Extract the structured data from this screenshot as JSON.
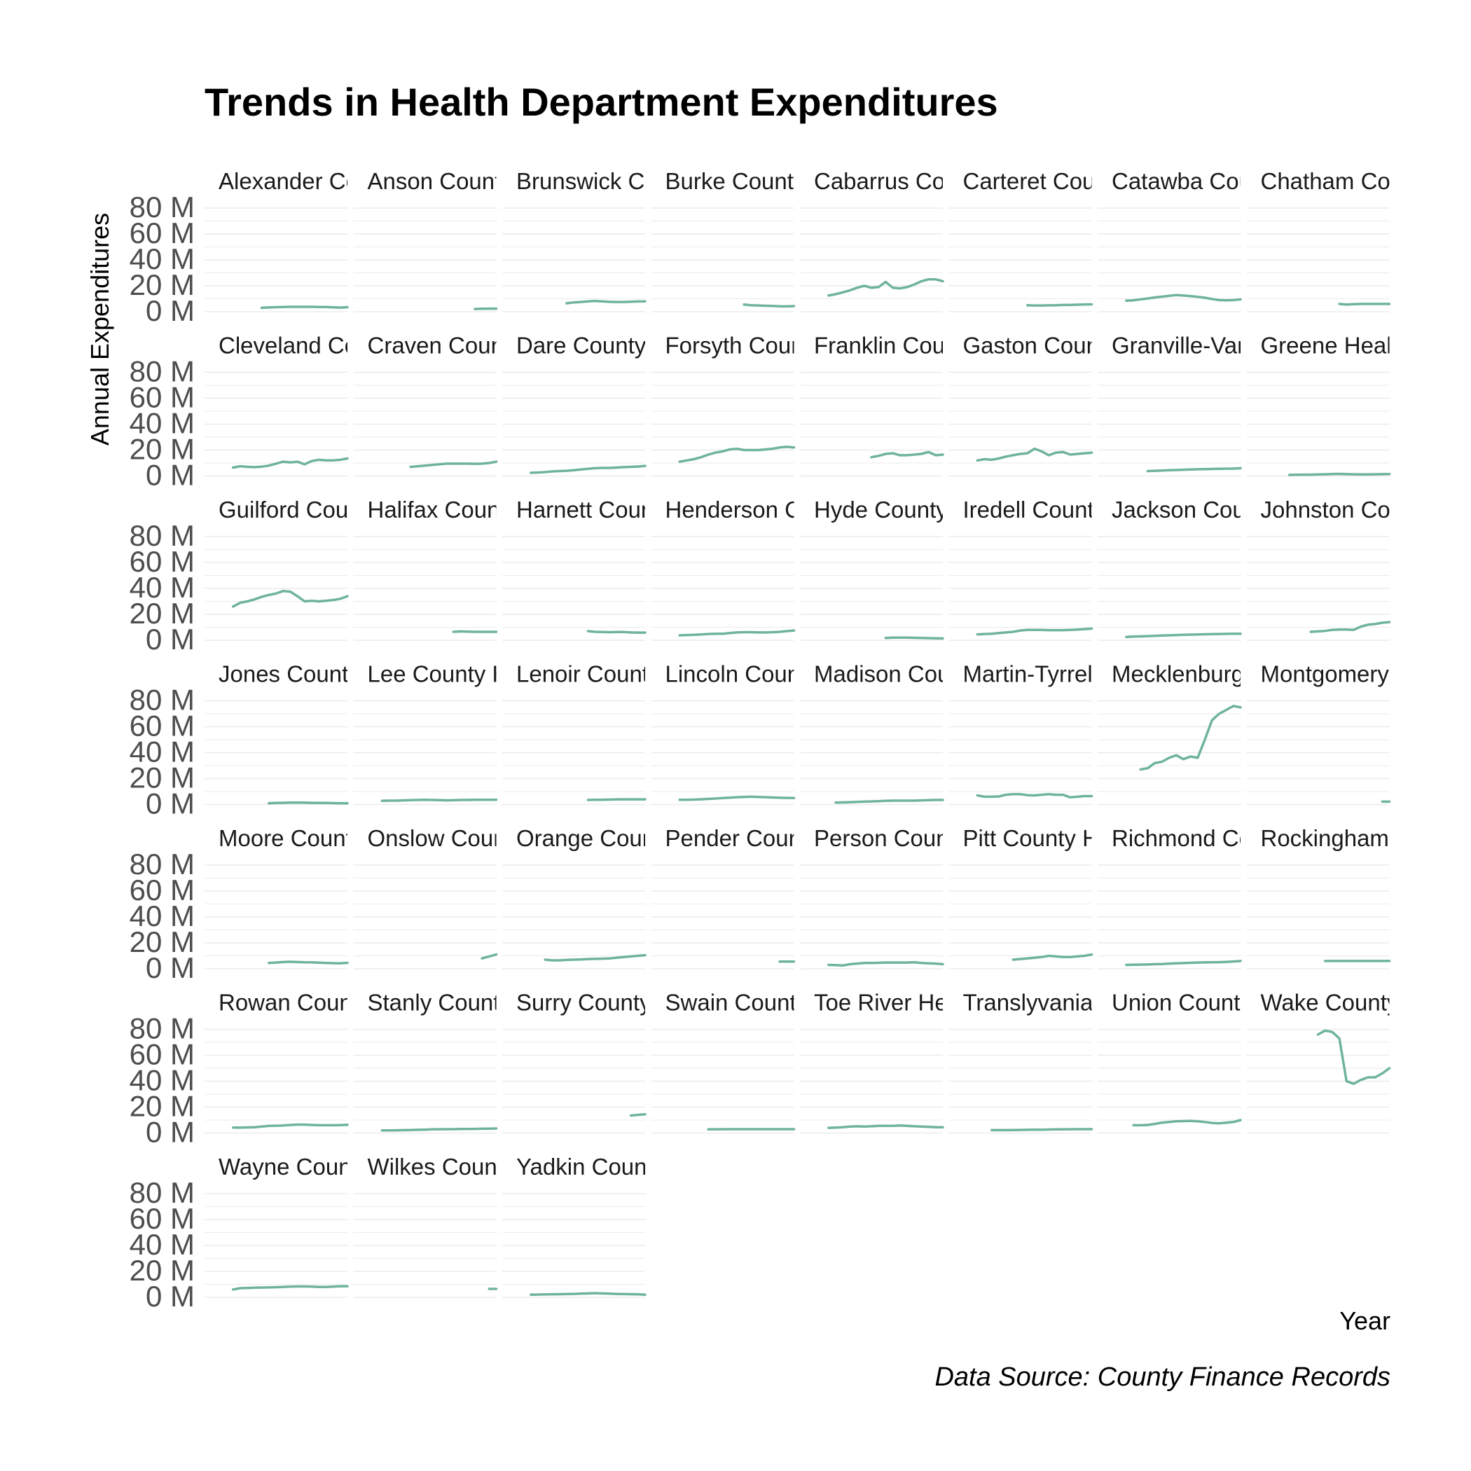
{
  "chart_data": {
    "type": "line",
    "title": "Trends in Health Department Expenditures",
    "xlabel": "Year",
    "ylabel": "Annual Expenditures",
    "caption": "Data Source: County Finance Records",
    "ylim": [
      0,
      80
    ],
    "yticks": [
      0,
      20,
      40,
      60,
      80
    ],
    "ytick_labels": [
      "0 M",
      "20 M",
      "40 M",
      "60 M",
      "80 M"
    ],
    "units": "M",
    "grid": true,
    "legend": "none",
    "line_color": "#6fb39e",
    "panels": [
      {
        "label": "Alexander Co",
        "values": [
          null,
          null,
          null,
          null,
          3.0,
          3.3,
          3.5,
          3.7,
          3.8,
          3.8,
          3.8,
          3.8,
          3.7,
          3.6,
          3.4,
          3.2,
          3.5
        ]
      },
      {
        "label": "Anson Count",
        "values": [
          null,
          null,
          null,
          null,
          null,
          null,
          null,
          null,
          null,
          null,
          null,
          null,
          null,
          2.1,
          2.3,
          2.4,
          2.4
        ]
      },
      {
        "label": "Brunswick Co",
        "values": [
          null,
          null,
          null,
          null,
          null,
          6.5,
          7.2,
          7.5,
          8.0,
          8.3,
          8.0,
          7.6,
          7.5,
          7.5,
          7.7,
          7.9,
          8.0
        ]
      },
      {
        "label": "Burke County",
        "values": [
          null,
          null,
          null,
          null,
          null,
          null,
          null,
          null,
          null,
          5.5,
          5.0,
          4.8,
          4.6,
          4.5,
          4.2,
          4.1,
          4.3
        ]
      },
      {
        "label": "Cabarrus Cou",
        "values": [
          12.5,
          13.5,
          15.0,
          16.5,
          18.5,
          20.0,
          18.5,
          19.0,
          23.0,
          18.5,
          18.0,
          19.0,
          21.0,
          23.5,
          25.0,
          25.0,
          23.5
        ]
      },
      {
        "label": "Carteret Coun",
        "values": [
          null,
          null,
          null,
          null,
          null,
          null,
          null,
          5.0,
          4.8,
          4.8,
          4.9,
          5.0,
          5.2,
          5.3,
          5.4,
          5.6,
          5.7
        ]
      },
      {
        "label": "Catawba Cou",
        "values": [
          8.5,
          8.8,
          9.5,
          10.2,
          11.0,
          11.6,
          12.2,
          12.8,
          12.5,
          12.0,
          11.5,
          10.8,
          9.8,
          9.0,
          8.8,
          9.0,
          9.5
        ]
      },
      {
        "label": "Chatham Cou",
        "values": [
          null,
          null,
          null,
          null,
          null,
          null,
          null,
          null,
          null,
          6.0,
          5.5,
          5.8,
          6.0,
          6.0,
          6.0,
          6.0,
          6.0
        ]
      },
      {
        "label": "Cleveland Co",
        "values": [
          6.5,
          7.5,
          7.0,
          6.8,
          7.2,
          8.0,
          9.5,
          11.0,
          10.5,
          11.0,
          9.0,
          11.5,
          12.5,
          12.0,
          12.0,
          12.5,
          13.5
        ]
      },
      {
        "label": "Craven Coun",
        "values": [
          null,
          null,
          null,
          null,
          7.0,
          7.5,
          8.0,
          8.5,
          9.0,
          9.5,
          9.5,
          9.5,
          9.5,
          9.4,
          9.5,
          10.0,
          11.0
        ]
      },
      {
        "label": "Dare County",
        "values": [
          2.5,
          2.7,
          3.0,
          3.5,
          3.8,
          4.0,
          4.5,
          5.0,
          5.5,
          6.0,
          6.2,
          6.2,
          6.5,
          6.8,
          7.0,
          7.3,
          7.8
        ]
      },
      {
        "label": "Forsyth Cour",
        "values": [
          11.0,
          12.0,
          13.0,
          14.5,
          16.5,
          18.0,
          19.0,
          20.5,
          21.0,
          20.0,
          20.0,
          20.0,
          20.5,
          21.0,
          22.0,
          22.5,
          22.0
        ]
      },
      {
        "label": "Franklin Cour",
        "values": [
          null,
          null,
          null,
          null,
          null,
          null,
          14.5,
          15.5,
          17.0,
          17.5,
          16.0,
          16.0,
          16.5,
          17.0,
          18.5,
          16.0,
          16.5
        ]
      },
      {
        "label": "Gaston Coun",
        "values": [
          12.0,
          13.0,
          12.5,
          13.5,
          15.0,
          16.0,
          17.0,
          17.5,
          21.0,
          19.0,
          16.0,
          18.0,
          18.5,
          16.5,
          17.0,
          17.5,
          18.0
        ]
      },
      {
        "label": "Granville-Van",
        "values": [
          null,
          null,
          null,
          3.8,
          4.0,
          4.2,
          4.5,
          4.6,
          4.8,
          5.0,
          5.2,
          5.3,
          5.4,
          5.5,
          5.6,
          5.7,
          6.0
        ]
      },
      {
        "label": "Greene Healt",
        "values": [
          null,
          null,
          0.8,
          0.9,
          1.0,
          1.0,
          1.2,
          1.3,
          1.5,
          1.6,
          1.4,
          1.3,
          1.2,
          1.2,
          1.3,
          1.4,
          1.5
        ]
      },
      {
        "label": "Guilford Cour",
        "values": [
          26.0,
          29.0,
          30.0,
          31.5,
          33.5,
          35.0,
          36.0,
          38.0,
          37.5,
          34.0,
          30.0,
          30.5,
          30.0,
          30.5,
          31.0,
          32.0,
          34.0
        ]
      },
      {
        "label": "Halifax Count",
        "values": [
          null,
          null,
          null,
          null,
          null,
          null,
          null,
          null,
          null,
          null,
          6.5,
          6.8,
          6.6,
          6.5,
          6.5,
          6.5,
          6.5
        ]
      },
      {
        "label": "Harnett Coun",
        "values": [
          null,
          null,
          null,
          null,
          null,
          null,
          null,
          null,
          7.0,
          6.5,
          6.4,
          6.2,
          6.3,
          6.4,
          6.0,
          5.9,
          5.9
        ]
      },
      {
        "label": "Henderson C",
        "values": [
          3.8,
          4.0,
          4.2,
          4.5,
          4.8,
          5.0,
          5.0,
          5.5,
          6.0,
          6.2,
          6.2,
          6.0,
          6.0,
          6.2,
          6.5,
          7.0,
          7.5
        ]
      },
      {
        "label": "Hyde County",
        "values": [
          null,
          null,
          null,
          null,
          null,
          null,
          null,
          null,
          1.8,
          2.0,
          2.0,
          2.0,
          1.9,
          1.8,
          1.6,
          1.5,
          1.4
        ]
      },
      {
        "label": "Iredell County",
        "values": [
          4.5,
          4.8,
          5.0,
          5.5,
          6.0,
          6.5,
          7.5,
          8.0,
          8.0,
          8.0,
          7.8,
          7.8,
          7.8,
          8.0,
          8.2,
          8.6,
          9.0
        ]
      },
      {
        "label": "Jackson Cou",
        "values": [
          2.5,
          2.8,
          3.0,
          3.2,
          3.4,
          3.6,
          3.8,
          4.0,
          4.2,
          4.3,
          4.5,
          4.6,
          4.7,
          4.8,
          4.9,
          5.0,
          5.0
        ]
      },
      {
        "label": "Johnston Cou",
        "values": [
          null,
          null,
          null,
          null,
          null,
          6.5,
          6.8,
          7.2,
          8.0,
          8.2,
          8.2,
          8.0,
          10.5,
          12.0,
          12.5,
          13.5,
          14.0
        ]
      },
      {
        "label": "Jones County",
        "values": [
          null,
          null,
          null,
          null,
          null,
          1.0,
          1.2,
          1.3,
          1.5,
          1.5,
          1.4,
          1.3,
          1.2,
          1.2,
          1.1,
          1.0,
          1.0
        ]
      },
      {
        "label": "Lee County H",
        "values": [
          2.8,
          3.0,
          3.0,
          3.2,
          3.4,
          3.5,
          3.6,
          3.5,
          3.4,
          3.2,
          3.3,
          3.5,
          3.5,
          3.6,
          3.6,
          3.6,
          3.6
        ]
      },
      {
        "label": "Lenoir County",
        "values": [
          null,
          null,
          null,
          null,
          null,
          null,
          null,
          null,
          3.5,
          3.6,
          3.7,
          3.8,
          3.9,
          4.0,
          4.0,
          4.0,
          4.0
        ]
      },
      {
        "label": "Lincoln Coun",
        "values": [
          3.6,
          3.7,
          3.8,
          4.0,
          4.3,
          4.6,
          5.0,
          5.3,
          5.6,
          5.8,
          6.0,
          5.8,
          5.6,
          5.4,
          5.2,
          5.1,
          5.0
        ]
      },
      {
        "label": "Madison Cou",
        "values": [
          null,
          1.5,
          1.6,
          1.8,
          2.0,
          2.2,
          2.4,
          2.6,
          2.8,
          3.0,
          3.0,
          3.0,
          3.0,
          3.2,
          3.4,
          3.5,
          3.5
        ]
      },
      {
        "label": "Martin-Tyrrell",
        "values": [
          7.0,
          6.0,
          6.0,
          6.2,
          7.5,
          8.0,
          8.0,
          7.2,
          7.0,
          7.5,
          8.0,
          7.5,
          7.5,
          5.5,
          6.0,
          6.5,
          6.5
        ]
      },
      {
        "label": "Mecklenburg",
        "values": [
          null,
          null,
          null,
          null,
          null,
          null,
          27.0,
          28.0,
          32.0,
          33.0,
          36.0,
          38.0,
          35.0,
          37.0,
          36.0,
          50.0,
          65.0,
          70.0,
          73.0,
          76.0,
          75.0
        ]
      },
      {
        "label": "Montgomery",
        "values": [
          null,
          null,
          null,
          null,
          null,
          null,
          null,
          null,
          null,
          null,
          null,
          null,
          null,
          null,
          null,
          2.2,
          2.2
        ]
      },
      {
        "label": "Moore County",
        "values": [
          null,
          null,
          null,
          null,
          null,
          4.5,
          4.8,
          5.2,
          5.4,
          5.2,
          5.0,
          4.9,
          4.7,
          4.5,
          4.3,
          4.2,
          4.6
        ]
      },
      {
        "label": "Onslow Cour",
        "values": [
          null,
          null,
          null,
          null,
          null,
          null,
          null,
          null,
          null,
          null,
          null,
          null,
          null,
          null,
          8.0,
          9.5,
          11.0
        ]
      },
      {
        "label": "Orange Coun",
        "values": [
          null,
          null,
          7.0,
          6.5,
          6.5,
          6.8,
          7.0,
          7.2,
          7.5,
          7.6,
          7.8,
          8.0,
          8.5,
          9.0,
          9.5,
          10.0,
          10.5
        ]
      },
      {
        "label": "Pender Coun",
        "values": [
          null,
          null,
          null,
          null,
          null,
          null,
          null,
          null,
          null,
          null,
          null,
          null,
          null,
          null,
          5.5,
          5.5,
          5.5
        ]
      },
      {
        "label": "Person Coun",
        "values": [
          3.0,
          2.8,
          2.5,
          3.5,
          4.0,
          4.5,
          4.5,
          4.6,
          4.8,
          4.8,
          4.8,
          4.8,
          5.0,
          4.5,
          4.2,
          4.0,
          3.5
        ]
      },
      {
        "label": "Pitt County H",
        "values": [
          null,
          null,
          null,
          null,
          null,
          7.0,
          7.5,
          8.0,
          8.5,
          9.0,
          10.0,
          9.5,
          9.0,
          9.0,
          9.5,
          10.0,
          11.0
        ]
      },
      {
        "label": "Richmond Co",
        "values": [
          3.0,
          3.1,
          3.2,
          3.3,
          3.5,
          3.7,
          4.0,
          4.2,
          4.4,
          4.6,
          4.8,
          4.9,
          5.0,
          5.1,
          5.3,
          5.6,
          6.0
        ]
      },
      {
        "label": "Rockingham",
        "values": [
          null,
          null,
          null,
          null,
          null,
          null,
          null,
          6.0,
          6.0,
          6.0,
          6.0,
          6.0,
          6.0,
          6.0,
          6.0,
          6.0,
          6.0
        ]
      },
      {
        "label": "Rowan Count",
        "values": [
          4.2,
          4.2,
          4.3,
          4.5,
          5.0,
          5.5,
          5.6,
          5.8,
          6.2,
          6.5,
          6.5,
          6.2,
          6.0,
          6.0,
          6.0,
          6.1,
          6.3
        ]
      },
      {
        "label": "Stanly County",
        "values": [
          2.0,
          2.0,
          2.1,
          2.2,
          2.3,
          2.5,
          2.6,
          2.8,
          2.9,
          3.0,
          3.0,
          3.1,
          3.1,
          3.2,
          3.3,
          3.4,
          3.5
        ]
      },
      {
        "label": "Surry County",
        "values": [
          null,
          null,
          null,
          null,
          null,
          null,
          null,
          null,
          null,
          null,
          null,
          null,
          null,
          null,
          13.5,
          14.0,
          14.5
        ]
      },
      {
        "label": "Swain County",
        "values": [
          null,
          null,
          null,
          null,
          2.8,
          2.9,
          2.9,
          3.0,
          3.0,
          3.0,
          3.0,
          3.0,
          3.0,
          3.0,
          3.0,
          3.0,
          3.0
        ]
      },
      {
        "label": "Toe River He",
        "values": [
          4.0,
          4.2,
          4.5,
          5.0,
          5.2,
          5.0,
          5.2,
          5.5,
          5.5,
          5.5,
          5.8,
          5.5,
          5.2,
          5.0,
          4.8,
          4.5,
          4.5
        ]
      },
      {
        "label": "Translyvania",
        "values": [
          2.2,
          2.2,
          2.2,
          2.3,
          2.4,
          2.5,
          2.6,
          2.6,
          2.7,
          2.8,
          2.8,
          2.9,
          3.0,
          3.0,
          3.0
        ]
      },
      {
        "label": "Union County",
        "values": [
          null,
          6.0,
          6.0,
          6.2,
          7.0,
          8.0,
          8.5,
          9.0,
          9.2,
          9.4,
          9.0,
          8.5,
          7.8,
          7.5,
          8.0,
          8.5,
          10.0
        ]
      },
      {
        "label": "Wake County",
        "values": [
          null,
          null,
          null,
          null,
          null,
          null,
          null,
          null,
          null,
          null,
          76.0,
          79.0,
          78.0,
          73.0,
          40.0,
          38.0,
          41.0,
          43.0,
          43.0,
          46.0,
          50.0
        ]
      },
      {
        "label": "Wayne Coun",
        "values": [
          6.0,
          7.0,
          7.2,
          7.4,
          7.5,
          7.6,
          7.8,
          8.0,
          8.2,
          8.4,
          8.4,
          8.2,
          8.0,
          8.0,
          8.2,
          8.5,
          8.5
        ]
      },
      {
        "label": "Wilkes Count",
        "values": [
          null,
          null,
          null,
          null,
          null,
          null,
          null,
          null,
          null,
          null,
          null,
          null,
          null,
          null,
          null,
          6.5,
          6.5
        ]
      },
      {
        "label": "Yadkin Count",
        "values": [
          2.0,
          2.1,
          2.2,
          2.3,
          2.4,
          2.5,
          2.6,
          2.8,
          3.0,
          3.2,
          3.0,
          2.8,
          2.6,
          2.5,
          2.4,
          2.3,
          2.0
        ]
      }
    ]
  }
}
